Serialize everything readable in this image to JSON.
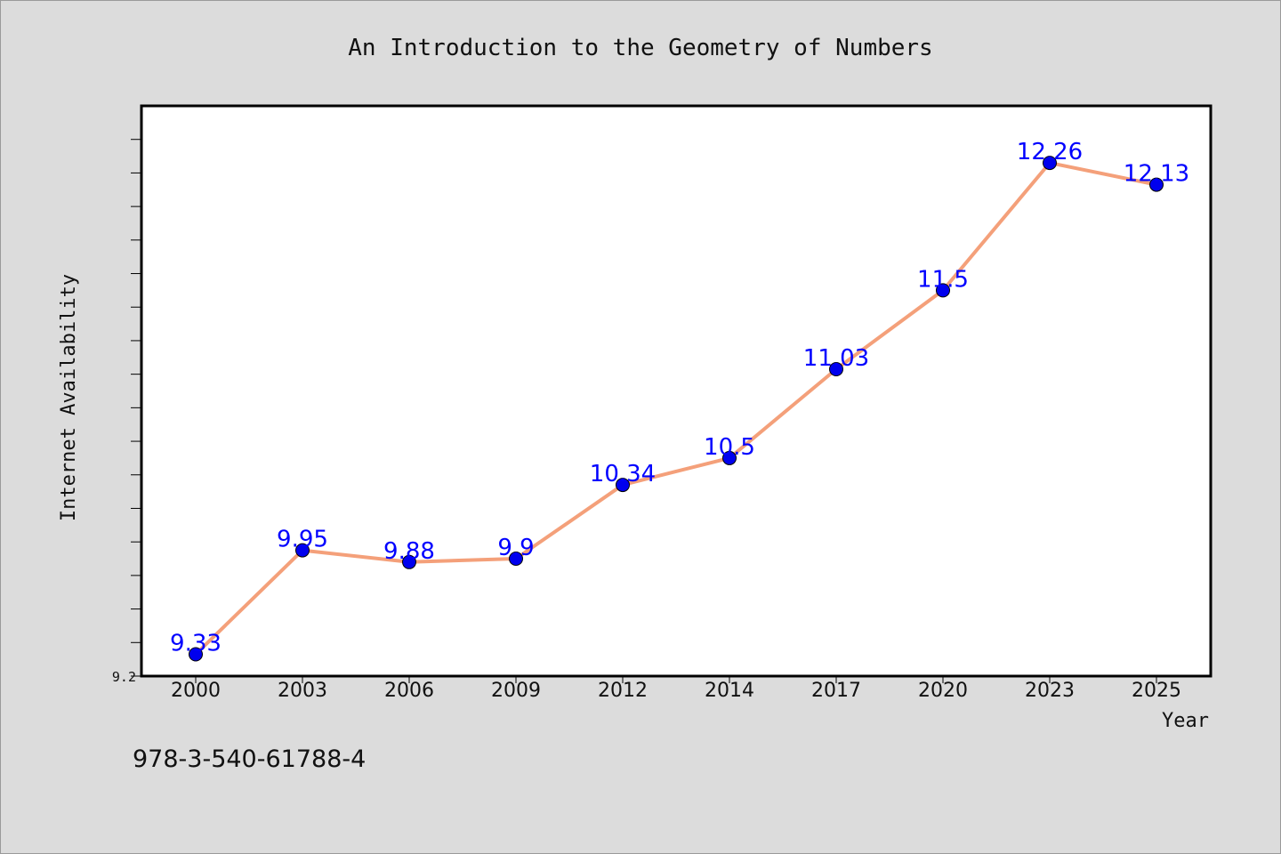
{
  "chart_data": {
    "type": "line",
    "title": "An Introduction to the Geometry of Numbers",
    "xlabel": "Year",
    "ylabel": "Internet Availability",
    "categories": [
      "2000",
      "2003",
      "2006",
      "2009",
      "2012",
      "2014",
      "2017",
      "2020",
      "2023",
      "2025"
    ],
    "series": [
      {
        "values": [
          9.33,
          9.95,
          9.88,
          9.9,
          10.34,
          10.5,
          11.03,
          11.5,
          12.26,
          12.13
        ],
        "labels": [
          "9.33",
          "9.95",
          "9.88",
          "9.9",
          "10.34",
          "10.5",
          "11.03",
          "11.5",
          "12.26",
          "12.13"
        ],
        "line_color": "#f4a07a",
        "marker_color": "#0000ee"
      }
    ],
    "ylim": [
      9.2,
      12.6
    ],
    "y_tick_labels": [
      "9.2"
    ],
    "grid": false,
    "legend": "none"
  },
  "footer": {
    "code": "978-3-540-61788-4"
  },
  "colors": {
    "background": "#dcdcdc",
    "plot_background": "#ffffff",
    "data_label": "#0000ff"
  }
}
